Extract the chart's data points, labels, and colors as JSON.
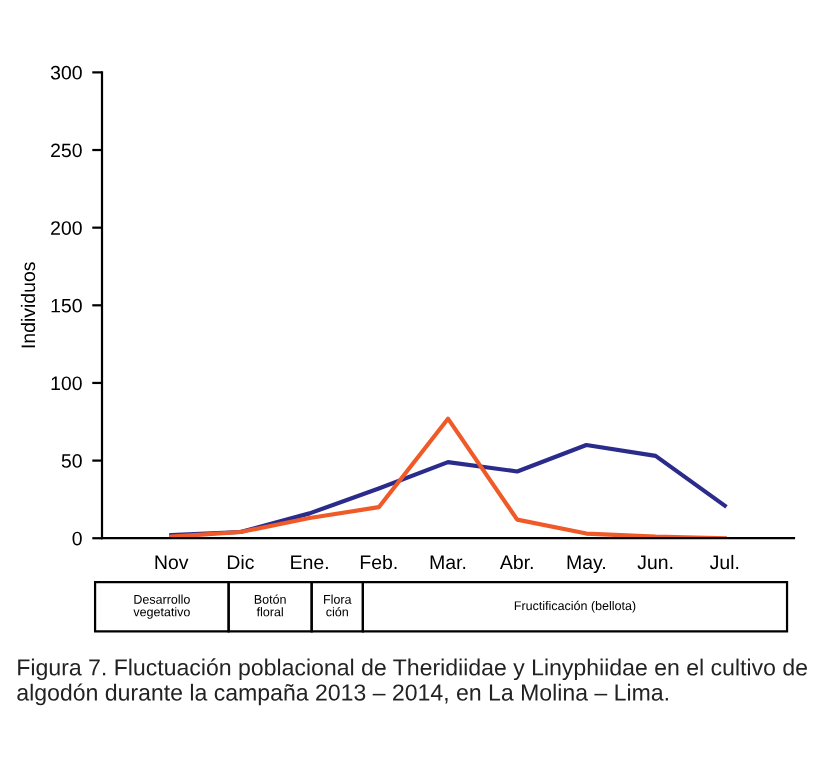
{
  "chart_data": {
    "type": "line",
    "ylabel": "Individuos",
    "categories": [
      "Nov",
      "Dic",
      "Ene.",
      "Feb.",
      "Mar.",
      "Abr.",
      "May.",
      "Jun.",
      "Jul."
    ],
    "series": [
      {
        "color": "#2b2b8c",
        "values": [
          2,
          4,
          16,
          32,
          49,
          43,
          60,
          53,
          21
        ]
      },
      {
        "color": "#f05a28",
        "values": [
          1,
          4,
          13,
          20,
          77,
          12,
          3,
          1,
          0
        ]
      }
    ],
    "ylim": [
      0,
      300
    ],
    "yticks": [
      0,
      50,
      100,
      150,
      200,
      250,
      300
    ],
    "grid": false,
    "legend": false,
    "marker": "none",
    "line_style": "solid",
    "annotations": [
      "Desarrollo\nvegetativo",
      "Botón\nfloral",
      "Flora\nción",
      "Fructificación (bellota)",
      "Figura 7. Fluctuación poblacional de Theridiidae y Linyphiidae en el cultivo de algodón durante la campaña 2013 – 2014, en La Molina – Lima."
    ]
  }
}
